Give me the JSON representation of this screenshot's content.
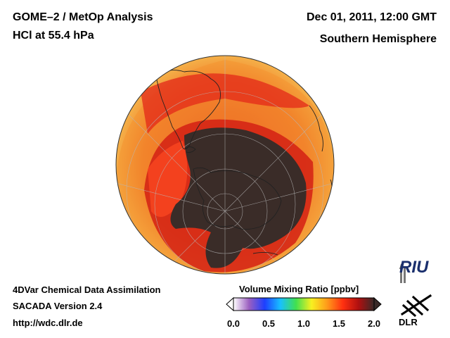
{
  "header": {
    "title_line1": "GOME–2 / MetOp Analysis",
    "title_line2": "HCl at 55.4 hPa",
    "datetime": "Dec 01, 2011, 12:00 GMT",
    "region": "Southern Hemisphere"
  },
  "footer": {
    "line1": "4DVar Chemical Data Assimilation",
    "line2": "SACADA Version 2.4",
    "line3": "http://wdc.dlr.de"
  },
  "colorbar": {
    "title": "Volume Mixing Ratio [ppbv]",
    "ticks": [
      "0.0",
      "0.5",
      "1.0",
      "1.5",
      "2.0"
    ],
    "min": 0.0,
    "max": 2.0,
    "colors": [
      "#ffffff",
      "#9b5fc0",
      "#1d3fff",
      "#18c0ff",
      "#40e050",
      "#f8f020",
      "#ff9a1a",
      "#ff3010",
      "#b01010",
      "#3a2a28"
    ]
  },
  "logos": {
    "riu": "RIU",
    "dlr": "DLR"
  },
  "map": {
    "projection": "orthographic-south-polar",
    "low_value_color": "#3a2c28",
    "mid_value_color": "#e8301a",
    "high_value_color": "#f5a030"
  }
}
